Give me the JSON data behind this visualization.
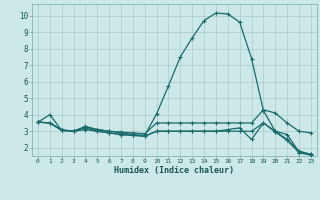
{
  "xlabel": "Humidex (Indice chaleur)",
  "xlim": [
    -0.5,
    23.5
  ],
  "ylim": [
    1.5,
    10.7
  ],
  "xticks": [
    0,
    1,
    2,
    3,
    4,
    5,
    6,
    7,
    8,
    9,
    10,
    11,
    12,
    13,
    14,
    15,
    16,
    17,
    18,
    19,
    20,
    21,
    22,
    23
  ],
  "yticks": [
    2,
    3,
    4,
    5,
    6,
    7,
    8,
    9,
    10
  ],
  "bg_color": "#cce8e8",
  "grid_color": "#b0d0d0",
  "line_color": "#1a6b6b",
  "line1_x": [
    0,
    1,
    2,
    3,
    4,
    5,
    6,
    7,
    8,
    9,
    10,
    11,
    12,
    13,
    14,
    15,
    16,
    17,
    18,
    19,
    20,
    21,
    22,
    23
  ],
  "line1_y": [
    3.55,
    4.0,
    3.05,
    3.0,
    3.25,
    3.1,
    3.0,
    2.9,
    2.8,
    2.75,
    4.05,
    5.75,
    7.5,
    8.65,
    9.7,
    10.15,
    10.1,
    9.6,
    7.4,
    4.25,
    3.0,
    2.5,
    1.8,
    1.6
  ],
  "line2_x": [
    0,
    1,
    2,
    3,
    4,
    5,
    6,
    7,
    8,
    9,
    10,
    11,
    12,
    13,
    14,
    15,
    16,
    17,
    18,
    19,
    20,
    21,
    22,
    23
  ],
  "line2_y": [
    3.55,
    3.5,
    3.05,
    3.0,
    3.3,
    3.1,
    3.0,
    2.95,
    2.9,
    2.85,
    3.5,
    3.5,
    3.5,
    3.5,
    3.5,
    3.5,
    3.5,
    3.5,
    3.5,
    4.3,
    4.1,
    3.5,
    3.0,
    2.9
  ],
  "line3_x": [
    0,
    1,
    2,
    3,
    4,
    5,
    6,
    7,
    8,
    9,
    10,
    11,
    12,
    13,
    14,
    15,
    16,
    17,
    18,
    19,
    20,
    21,
    22,
    23
  ],
  "line3_y": [
    3.55,
    3.5,
    3.05,
    3.0,
    3.2,
    3.0,
    2.9,
    2.8,
    2.75,
    2.7,
    3.0,
    3.0,
    3.0,
    3.0,
    3.0,
    3.0,
    3.0,
    3.0,
    3.0,
    3.5,
    3.0,
    2.8,
    1.75,
    1.6
  ],
  "line4_x": [
    0,
    1,
    2,
    3,
    4,
    5,
    6,
    7,
    8,
    9,
    10,
    11,
    12,
    13,
    14,
    15,
    16,
    17,
    18,
    19,
    20,
    21,
    22,
    23
  ],
  "line4_y": [
    3.55,
    3.5,
    3.1,
    3.0,
    3.1,
    3.0,
    2.9,
    2.8,
    2.75,
    2.7,
    3.0,
    3.0,
    3.0,
    3.0,
    3.0,
    3.0,
    3.1,
    3.2,
    2.5,
    3.5,
    2.95,
    2.45,
    1.7,
    1.55
  ]
}
